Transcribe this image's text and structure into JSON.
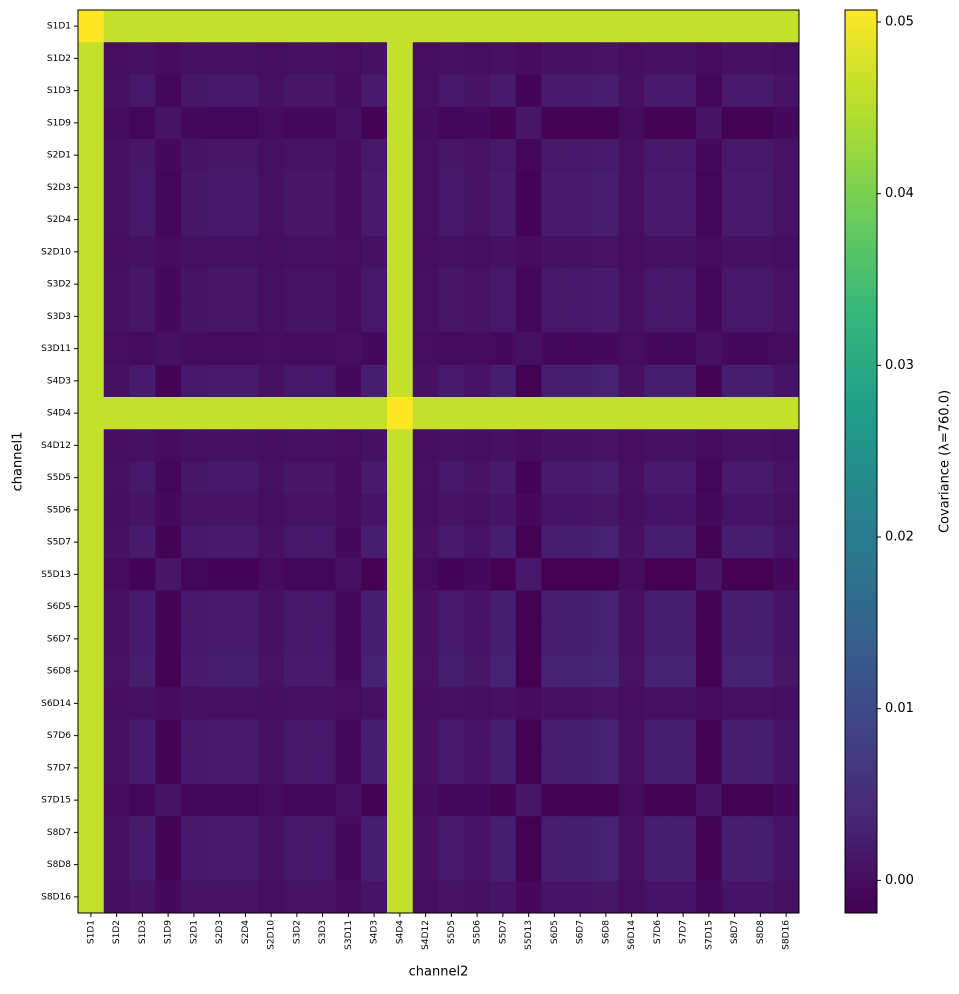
{
  "chart_data": {
    "type": "heatmap",
    "x_label": "channel2",
    "y_label": "channel1",
    "colorbar_label": "Covariance (λ=760.0)",
    "colormap": "viridis",
    "x_categories": [
      "S1D1",
      "S1D2",
      "S1D3",
      "S1D9",
      "S2D1",
      "S2D3",
      "S2D4",
      "S2D10",
      "S3D2",
      "S3D3",
      "S3D11",
      "S4D3",
      "S4D4",
      "S4D12",
      "S5D5",
      "S5D6",
      "S5D7",
      "S5D13",
      "S6D5",
      "S6D7",
      "S6D8",
      "S6D14",
      "S7D6",
      "S7D7",
      "S7D15",
      "S8D7",
      "S8D8",
      "S8D16"
    ],
    "y_categories": [
      "S1D1",
      "S1D2",
      "S1D3",
      "S1D9",
      "S2D1",
      "S2D3",
      "S2D4",
      "S2D10",
      "S3D2",
      "S3D3",
      "S3D11",
      "S4D3",
      "S4D4",
      "S4D12",
      "S5D5",
      "S5D6",
      "S5D7",
      "S5D13",
      "S6D5",
      "S6D7",
      "S6D8",
      "S6D14",
      "S7D6",
      "S7D7",
      "S7D15",
      "S8D7",
      "S8D8",
      "S8D16"
    ],
    "zlim": [
      -0.0019,
      0.0507
    ],
    "zticks": [
      {
        "value": 0,
        "label": "0.00"
      },
      {
        "value": 0.01,
        "label": "0.01"
      },
      {
        "value": 0.02,
        "label": "0.02"
      },
      {
        "value": 0.03,
        "label": "0.03"
      },
      {
        "value": 0.04,
        "label": "0.04"
      },
      {
        "value": 0.05,
        "label": "0.05"
      }
    ],
    "z": [
      [
        0.051,
        0.046,
        0.046,
        0.046,
        0.046,
        0.046,
        0.046,
        0.046,
        0.046,
        0.046,
        0.046,
        0.046,
        0.046,
        0.046,
        0.046,
        0.046,
        0.046,
        0.046,
        0.046,
        0.046,
        0.046,
        0.046,
        0.046,
        0.046,
        0.046,
        0.046,
        0.046,
        0.046
      ],
      [
        0.046,
        0.0001,
        0.0004,
        -0.0003,
        0.0003,
        0.0004,
        0.0004,
        0.0001,
        0.0003,
        0.0003,
        -0.0001,
        0.0005,
        0.046,
        0.0001,
        0.0004,
        0.0002,
        0.0005,
        -0.0004,
        0.0005,
        0.0005,
        0.0006,
        0.0001,
        0.0005,
        0.0005,
        -0.0003,
        0.0005,
        0.0005,
        0.0002
      ],
      [
        0.046,
        0.0004,
        0.0016,
        -0.0012,
        0.0012,
        0.0016,
        0.0016,
        0.0004,
        0.0012,
        0.0012,
        -0.0004,
        0.002,
        0.046,
        0.0004,
        0.0016,
        0.0008,
        0.002,
        -0.0016,
        0.002,
        0.002,
        0.0024,
        0.0004,
        0.002,
        0.002,
        -0.0012,
        0.002,
        0.002,
        0.0008
      ],
      [
        0.046,
        -0.0003,
        -0.0012,
        0.0009,
        -0.0009,
        -0.0012,
        -0.0012,
        -0.0003,
        -0.0009,
        -0.0009,
        0.0003,
        -0.0015,
        0.046,
        -0.0003,
        -0.0012,
        -0.0006,
        -0.0015,
        0.0012,
        -0.0015,
        -0.0015,
        -0.0018,
        -0.0003,
        -0.0015,
        -0.0015,
        0.0009,
        -0.0015,
        -0.0015,
        -0.0006
      ],
      [
        0.046,
        0.0003,
        0.0012,
        -0.0009,
        0.0009,
        0.0012,
        0.0012,
        0.0003,
        0.0009,
        0.0009,
        -0.0003,
        0.0015,
        0.046,
        0.0003,
        0.0012,
        0.0006,
        0.0015,
        -0.0012,
        0.0015,
        0.0015,
        0.0018,
        0.0003,
        0.0015,
        0.0015,
        -0.0009,
        0.0015,
        0.0015,
        0.0006
      ],
      [
        0.046,
        0.0004,
        0.0016,
        -0.0012,
        0.0012,
        0.0016,
        0.0016,
        0.0004,
        0.0012,
        0.0012,
        -0.0004,
        0.002,
        0.046,
        0.0004,
        0.0016,
        0.0008,
        0.002,
        -0.0016,
        0.002,
        0.002,
        0.0024,
        0.0004,
        0.002,
        0.002,
        -0.0012,
        0.002,
        0.002,
        0.0008
      ],
      [
        0.046,
        0.0004,
        0.0016,
        -0.0012,
        0.0012,
        0.0016,
        0.0016,
        0.0004,
        0.0012,
        0.0012,
        -0.0004,
        0.002,
        0.046,
        0.0004,
        0.0016,
        0.0008,
        0.002,
        -0.0016,
        0.002,
        0.002,
        0.0024,
        0.0004,
        0.002,
        0.002,
        -0.0012,
        0.002,
        0.002,
        0.0008
      ],
      [
        0.046,
        0.0001,
        0.0004,
        -0.0003,
        0.0003,
        0.0004,
        0.0004,
        0.0001,
        0.0003,
        0.0003,
        -0.0001,
        0.0005,
        0.046,
        0.0001,
        0.0004,
        0.0002,
        0.0005,
        -0.0004,
        0.0005,
        0.0005,
        0.0006,
        0.0001,
        0.0005,
        0.0005,
        -0.0003,
        0.0005,
        0.0005,
        0.0002
      ],
      [
        0.046,
        0.0003,
        0.0012,
        -0.0009,
        0.0009,
        0.0012,
        0.0012,
        0.0003,
        0.0009,
        0.0009,
        -0.0003,
        0.0015,
        0.046,
        0.0003,
        0.0012,
        0.0006,
        0.0015,
        -0.0012,
        0.0015,
        0.0015,
        0.0018,
        0.0003,
        0.0015,
        0.0015,
        -0.0009,
        0.0015,
        0.0015,
        0.0006
      ],
      [
        0.046,
        0.0003,
        0.0012,
        -0.0009,
        0.0009,
        0.0012,
        0.0012,
        0.0003,
        0.0009,
        0.0009,
        -0.0003,
        0.0015,
        0.046,
        0.0003,
        0.0012,
        0.0006,
        0.0015,
        -0.0012,
        0.0015,
        0.0015,
        0.0018,
        0.0003,
        0.0015,
        0.0015,
        -0.0009,
        0.0015,
        0.0015,
        0.0006
      ],
      [
        0.046,
        -0.0001,
        -0.0004,
        0.0003,
        -0.0003,
        -0.0004,
        -0.0004,
        -0.0001,
        -0.0003,
        -0.0003,
        0.0001,
        -0.0005,
        0.046,
        -0.0001,
        -0.0004,
        -0.0002,
        -0.0005,
        0.0004,
        -0.0005,
        -0.0005,
        -0.0006,
        -0.0001,
        -0.0005,
        -0.0005,
        0.0003,
        -0.0005,
        -0.0005,
        -0.0002
      ],
      [
        0.046,
        0.0005,
        0.002,
        -0.0015,
        0.0015,
        0.002,
        0.002,
        0.0005,
        0.0015,
        0.0015,
        -0.0005,
        0.0025,
        0.046,
        0.0005,
        0.002,
        0.001,
        0.0025,
        -0.002,
        0.0025,
        0.0025,
        0.003,
        0.0005,
        0.0025,
        0.0025,
        -0.0015,
        0.0025,
        0.0025,
        0.001
      ],
      [
        0.046,
        0.046,
        0.046,
        0.046,
        0.046,
        0.046,
        0.046,
        0.046,
        0.046,
        0.046,
        0.046,
        0.046,
        0.051,
        0.046,
        0.046,
        0.046,
        0.046,
        0.046,
        0.046,
        0.046,
        0.046,
        0.046,
        0.046,
        0.046,
        0.046,
        0.046,
        0.046,
        0.046
      ],
      [
        0.046,
        0.0001,
        0.0004,
        -0.0003,
        0.0003,
        0.0004,
        0.0004,
        0.0001,
        0.0003,
        0.0003,
        -0.0001,
        0.0005,
        0.046,
        0.0001,
        0.0004,
        0.0002,
        0.0005,
        -0.0004,
        0.0005,
        0.0005,
        0.0006,
        0.0001,
        0.0005,
        0.0005,
        -0.0003,
        0.0005,
        0.0005,
        0.0002
      ],
      [
        0.046,
        0.0004,
        0.0016,
        -0.0012,
        0.0012,
        0.0016,
        0.0016,
        0.0004,
        0.0012,
        0.0012,
        -0.0004,
        0.002,
        0.046,
        0.0004,
        0.0016,
        0.0008,
        0.002,
        -0.0016,
        0.002,
        0.002,
        0.0024,
        0.0004,
        0.002,
        0.002,
        -0.0012,
        0.002,
        0.002,
        0.0008
      ],
      [
        0.046,
        0.0002,
        0.0008,
        -0.0006,
        0.0006,
        0.0008,
        0.0008,
        0.0002,
        0.0006,
        0.0006,
        -0.0002,
        0.001,
        0.046,
        0.0002,
        0.0008,
        0.0004,
        0.001,
        -0.0008,
        0.001,
        0.001,
        0.0012,
        0.0002,
        0.001,
        0.001,
        -0.0006,
        0.001,
        0.001,
        0.0004
      ],
      [
        0.046,
        0.0005,
        0.002,
        -0.0015,
        0.0015,
        0.002,
        0.002,
        0.0005,
        0.0015,
        0.0015,
        -0.0005,
        0.0025,
        0.046,
        0.0005,
        0.002,
        0.001,
        0.0025,
        -0.002,
        0.0025,
        0.0025,
        0.003,
        0.0005,
        0.0025,
        0.0025,
        -0.0015,
        0.0025,
        0.0025,
        0.001
      ],
      [
        0.046,
        -0.0004,
        -0.0016,
        0.0012,
        -0.0012,
        -0.0016,
        -0.0016,
        -0.0004,
        -0.0012,
        -0.0012,
        0.0004,
        -0.002,
        0.046,
        -0.0004,
        -0.0016,
        -0.0008,
        -0.002,
        0.0016,
        -0.002,
        -0.002,
        -0.0024,
        -0.0004,
        -0.002,
        -0.002,
        0.0012,
        -0.002,
        -0.002,
        -0.0008
      ],
      [
        0.046,
        0.0005,
        0.002,
        -0.0015,
        0.0015,
        0.002,
        0.002,
        0.0005,
        0.0015,
        0.0015,
        -0.0005,
        0.0025,
        0.046,
        0.0005,
        0.002,
        0.001,
        0.0025,
        -0.002,
        0.0025,
        0.0025,
        0.003,
        0.0005,
        0.0025,
        0.0025,
        -0.0015,
        0.0025,
        0.0025,
        0.001
      ],
      [
        0.046,
        0.0005,
        0.002,
        -0.0015,
        0.0015,
        0.002,
        0.002,
        0.0005,
        0.0015,
        0.0015,
        -0.0005,
        0.0025,
        0.046,
        0.0005,
        0.002,
        0.001,
        0.0025,
        -0.002,
        0.0025,
        0.0025,
        0.003,
        0.0005,
        0.0025,
        0.0025,
        -0.0015,
        0.0025,
        0.0025,
        0.001
      ],
      [
        0.046,
        0.0006,
        0.0024,
        -0.0018,
        0.0018,
        0.0024,
        0.0024,
        0.0006,
        0.0018,
        0.0018,
        -0.0006,
        0.003,
        0.046,
        0.0006,
        0.0024,
        0.0012,
        0.003,
        -0.0024,
        0.003,
        0.003,
        0.0036,
        0.0006,
        0.003,
        0.003,
        -0.0018,
        0.003,
        0.003,
        0.0012
      ],
      [
        0.046,
        0.0001,
        0.0004,
        -0.0003,
        0.0003,
        0.0004,
        0.0004,
        0.0001,
        0.0003,
        0.0003,
        -0.0001,
        0.0005,
        0.046,
        0.0001,
        0.0004,
        0.0002,
        0.0005,
        -0.0004,
        0.0005,
        0.0005,
        0.0006,
        0.0001,
        0.0005,
        0.0005,
        -0.0003,
        0.0005,
        0.0005,
        0.0002
      ],
      [
        0.046,
        0.0005,
        0.002,
        -0.0015,
        0.0015,
        0.002,
        0.002,
        0.0005,
        0.0015,
        0.0015,
        -0.0005,
        0.0025,
        0.046,
        0.0005,
        0.002,
        0.001,
        0.0025,
        -0.002,
        0.0025,
        0.0025,
        0.003,
        0.0005,
        0.0025,
        0.0025,
        -0.0015,
        0.0025,
        0.0025,
        0.001
      ],
      [
        0.046,
        0.0005,
        0.002,
        -0.0015,
        0.0015,
        0.002,
        0.002,
        0.0005,
        0.0015,
        0.0015,
        -0.0005,
        0.0025,
        0.046,
        0.0005,
        0.002,
        0.001,
        0.0025,
        -0.002,
        0.0025,
        0.0025,
        0.003,
        0.0005,
        0.0025,
        0.0025,
        -0.0015,
        0.0025,
        0.0025,
        0.001
      ],
      [
        0.046,
        -0.0003,
        -0.0012,
        0.0009,
        -0.0009,
        -0.0012,
        -0.0012,
        -0.0003,
        -0.0009,
        -0.0009,
        0.0003,
        -0.0015,
        0.046,
        -0.0003,
        -0.0012,
        -0.0006,
        -0.0015,
        0.0012,
        -0.0015,
        -0.0015,
        -0.0018,
        -0.0003,
        -0.0015,
        -0.0015,
        0.0009,
        -0.0015,
        -0.0015,
        -0.0006
      ],
      [
        0.046,
        0.0005,
        0.002,
        -0.0015,
        0.0015,
        0.002,
        0.002,
        0.0005,
        0.0015,
        0.0015,
        -0.0005,
        0.0025,
        0.046,
        0.0005,
        0.002,
        0.001,
        0.0025,
        -0.002,
        0.0025,
        0.0025,
        0.003,
        0.0005,
        0.0025,
        0.0025,
        -0.0015,
        0.0025,
        0.0025,
        0.001
      ],
      [
        0.046,
        0.0005,
        0.002,
        -0.0015,
        0.0015,
        0.002,
        0.002,
        0.0005,
        0.0015,
        0.0015,
        -0.0005,
        0.0025,
        0.046,
        0.0005,
        0.002,
        0.001,
        0.0025,
        -0.002,
        0.0025,
        0.0025,
        0.003,
        0.0005,
        0.0025,
        0.0025,
        -0.0015,
        0.0025,
        0.0025,
        0.001
      ],
      [
        0.046,
        0.0002,
        0.0008,
        -0.0006,
        0.0006,
        0.0008,
        0.0008,
        0.0002,
        0.0006,
        0.0006,
        -0.0002,
        0.001,
        0.046,
        0.0002,
        0.0008,
        0.0004,
        0.001,
        -0.0008,
        0.001,
        0.001,
        0.0012,
        0.0002,
        0.001,
        0.001,
        -0.0006,
        0.001,
        0.001,
        0.0004
      ]
    ]
  }
}
